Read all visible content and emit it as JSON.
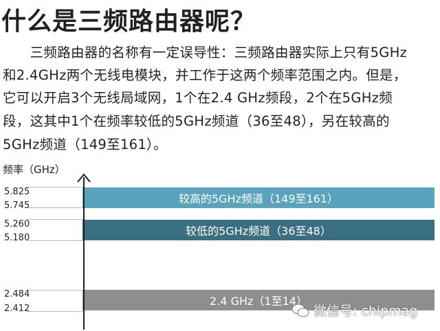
{
  "title": "什么是三频路由器呢？",
  "paragraph": [
    "　　三频路由器的名称有一定误导性：三频路由器实际上只有5GHz",
    "和2.4GHz两个无线电模块，并工作于这两个频率范围之内。但是，",
    "它可以开启3个无线局域网，1个在2.4 GHz频段，2个在5GHz频",
    "段，这其中1个在频率较低的5GHz频道（36至48），另在较高的",
    "5GHz频道（149至161）。"
  ],
  "diagram": {
    "axis_label": "频率（GHz）",
    "bands": [
      {
        "label": "较高的5GHz频道（149至161）",
        "high": "5.825",
        "low": "5.745",
        "color": "#5aa3be"
      },
      {
        "label": "较低的5GHz频道（36至48）",
        "high": "5.260",
        "low": "5.180",
        "color": "#3a6e82"
      },
      {
        "label": "2.4 GHz（1至14）",
        "high": "2.484",
        "low": "2.412",
        "color": "#8e8e8e"
      }
    ]
  },
  "watermark": {
    "text": "微信号: chipmag",
    "icon": "wechat-icon"
  }
}
